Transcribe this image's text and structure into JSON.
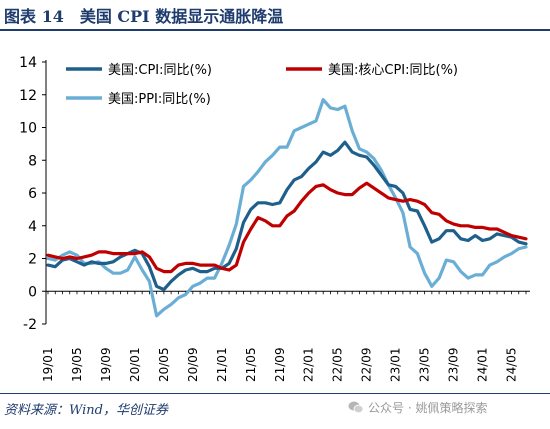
{
  "figure_title": "图表 14　美国 CPI 数据显示通胀降温",
  "source_note": "资料来源：Wind，华创证券",
  "watermark": "公众号 · 姚佩策略探索",
  "watermark_icon": "wechat-icon",
  "chart_data": {
    "type": "line",
    "title": "",
    "xlabel": "",
    "ylabel": "",
    "ylim": [
      -2,
      14
    ],
    "yticks": [
      -2,
      0,
      2,
      4,
      6,
      8,
      10,
      12,
      14
    ],
    "grid": false,
    "legend_position": "top-left",
    "x_tick_labels": [
      "19/01",
      "19/05",
      "19/09",
      "20/01",
      "20/05",
      "20/09",
      "21/01",
      "21/05",
      "21/09",
      "22/01",
      "22/05",
      "22/09",
      "23/01",
      "23/05",
      "23/09",
      "24/01",
      "24/05"
    ],
    "x_tick_start_index": 0,
    "x_tick_step": 4,
    "x_months": [
      "19/01",
      "19/02",
      "19/03",
      "19/04",
      "19/05",
      "19/06",
      "19/07",
      "19/08",
      "19/09",
      "19/10",
      "19/11",
      "19/12",
      "20/01",
      "20/02",
      "20/03",
      "20/04",
      "20/05",
      "20/06",
      "20/07",
      "20/08",
      "20/09",
      "20/10",
      "20/11",
      "20/12",
      "21/01",
      "21/02",
      "21/03",
      "21/04",
      "21/05",
      "21/06",
      "21/07",
      "21/08",
      "21/09",
      "21/10",
      "21/11",
      "21/12",
      "22/01",
      "22/02",
      "22/03",
      "22/04",
      "22/05",
      "22/06",
      "22/07",
      "22/08",
      "22/09",
      "22/10",
      "22/11",
      "22/12",
      "23/01",
      "23/02",
      "23/03",
      "23/04",
      "23/05",
      "23/06",
      "23/07",
      "23/08",
      "23/09",
      "23/10",
      "23/11",
      "23/12",
      "24/01",
      "24/02",
      "24/03",
      "24/04",
      "24/05",
      "24/06",
      "24/07"
    ],
    "series": [
      {
        "name": "美国:CPI:同比(%)",
        "color": "#1f5f8b",
        "values": [
          1.6,
          1.5,
          1.9,
          2.0,
          1.8,
          1.6,
          1.8,
          1.7,
          1.7,
          1.8,
          2.1,
          2.3,
          2.5,
          2.3,
          1.5,
          0.3,
          0.1,
          0.6,
          1.0,
          1.3,
          1.4,
          1.2,
          1.2,
          1.4,
          1.4,
          1.7,
          2.6,
          4.2,
          5.0,
          5.4,
          5.4,
          5.3,
          5.4,
          6.2,
          6.8,
          7.0,
          7.5,
          7.9,
          8.5,
          8.3,
          8.6,
          9.1,
          8.5,
          8.3,
          8.2,
          7.7,
          7.1,
          6.5,
          6.4,
          6.0,
          5.0,
          4.9,
          4.0,
          3.0,
          3.2,
          3.7,
          3.7,
          3.2,
          3.1,
          3.4,
          3.1,
          3.2,
          3.5,
          3.4,
          3.3,
          3.0,
          2.9
        ]
      },
      {
        "name": "美国:核心CPI:同比(%)",
        "color": "#c00000",
        "values": [
          2.2,
          2.1,
          2.0,
          2.1,
          2.0,
          2.1,
          2.2,
          2.4,
          2.4,
          2.3,
          2.3,
          2.3,
          2.3,
          2.4,
          2.1,
          1.4,
          1.2,
          1.2,
          1.6,
          1.7,
          1.7,
          1.6,
          1.6,
          1.6,
          1.4,
          1.3,
          1.6,
          3.0,
          3.8,
          4.5,
          4.3,
          4.0,
          4.0,
          4.6,
          4.9,
          5.5,
          6.0,
          6.4,
          6.5,
          6.2,
          6.0,
          5.9,
          5.9,
          6.3,
          6.6,
          6.3,
          6.0,
          5.7,
          5.6,
          5.5,
          5.6,
          5.5,
          5.3,
          4.8,
          4.7,
          4.3,
          4.1,
          4.0,
          4.0,
          3.9,
          3.9,
          3.8,
          3.8,
          3.6,
          3.4,
          3.3,
          3.2
        ]
      },
      {
        "name": "美国:PPI:同比(%)",
        "color": "#6aaed6",
        "values": [
          2.0,
          1.9,
          2.2,
          2.4,
          2.2,
          1.7,
          1.7,
          1.8,
          1.4,
          1.1,
          1.1,
          1.3,
          2.1,
          1.3,
          0.6,
          -1.5,
          -1.1,
          -0.8,
          -0.4,
          -0.2,
          0.3,
          0.5,
          0.8,
          0.8,
          1.7,
          2.8,
          4.1,
          6.4,
          6.8,
          7.3,
          7.9,
          8.3,
          8.8,
          8.8,
          9.8,
          10.0,
          10.2,
          10.4,
          11.7,
          11.2,
          11.1,
          11.3,
          9.8,
          8.7,
          8.5,
          8.1,
          7.4,
          6.5,
          5.7,
          4.8,
          2.7,
          2.3,
          1.1,
          0.3,
          0.8,
          1.9,
          1.8,
          1.2,
          0.8,
          1.0,
          1.0,
          1.6,
          1.8,
          2.1,
          2.3,
          2.6,
          2.7
        ]
      }
    ]
  }
}
